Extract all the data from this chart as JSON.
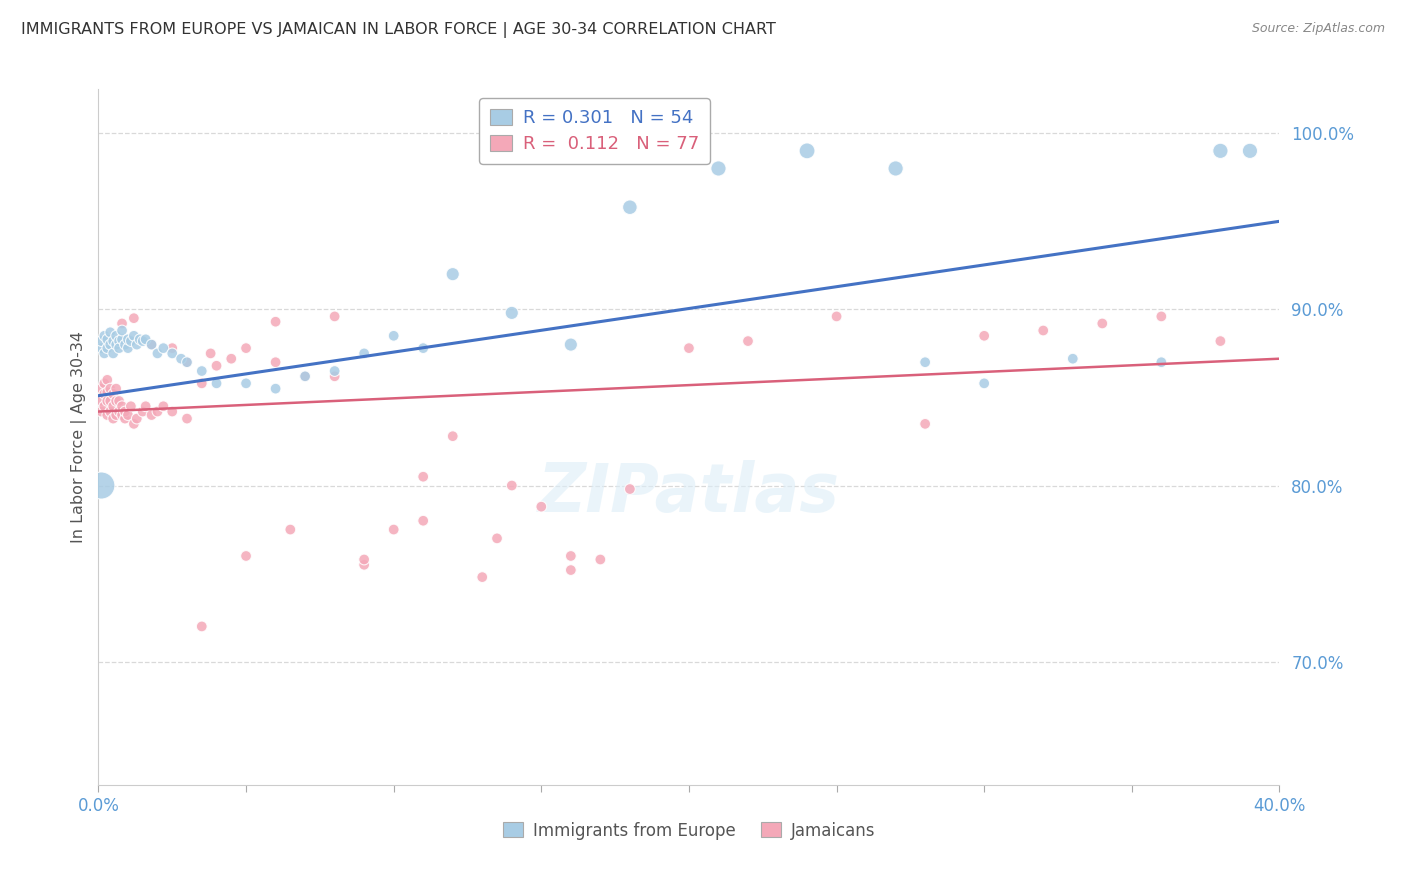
{
  "title": "IMMIGRANTS FROM EUROPE VS JAMAICAN IN LABOR FORCE | AGE 30-34 CORRELATION CHART",
  "source": "Source: ZipAtlas.com",
  "ylabel_left": "In Labor Force | Age 30-34",
  "x_min": 0.0,
  "x_max": 0.4,
  "y_min": 0.63,
  "y_max": 1.025,
  "ytick_vals": [
    0.7,
    0.8,
    0.9,
    1.0
  ],
  "ytick_labels": [
    "70.0%",
    "80.0%",
    "90.0%",
    "100.0%"
  ],
  "xtick_vals": [
    0.0,
    0.05,
    0.1,
    0.15,
    0.2,
    0.25,
    0.3,
    0.35,
    0.4
  ],
  "blue_color": "#a8cce4",
  "blue_line_color": "#4472c4",
  "pink_color": "#f4a8b8",
  "pink_line_color": "#d9607a",
  "axis_tick_color": "#5b9bd5",
  "label_blue": "Immigrants from Europe",
  "label_pink": "Jamaicans",
  "legend_text_blue": [
    "R = 0.301",
    "N = 54"
  ],
  "legend_text_pink": [
    "R =  0.112",
    "N = 77"
  ],
  "watermark": "ZIPatlas",
  "background_color": "#ffffff",
  "grid_color": "#d9d9d9",
  "blue_x": [
    0.001,
    0.001,
    0.002,
    0.002,
    0.003,
    0.003,
    0.004,
    0.004,
    0.005,
    0.005,
    0.006,
    0.006,
    0.007,
    0.007,
    0.008,
    0.008,
    0.009,
    0.01,
    0.01,
    0.011,
    0.012,
    0.013,
    0.014,
    0.015,
    0.016,
    0.018,
    0.02,
    0.022,
    0.025,
    0.028,
    0.03,
    0.035,
    0.04,
    0.05,
    0.06,
    0.07,
    0.08,
    0.09,
    0.1,
    0.11,
    0.12,
    0.14,
    0.16,
    0.18,
    0.21,
    0.24,
    0.27,
    0.3,
    0.33,
    0.36,
    0.001,
    0.28,
    0.38,
    0.39
  ],
  "blue_y": [
    0.878,
    0.882,
    0.875,
    0.885,
    0.878,
    0.883,
    0.88,
    0.887,
    0.875,
    0.882,
    0.88,
    0.885,
    0.882,
    0.878,
    0.883,
    0.888,
    0.88,
    0.878,
    0.883,
    0.882,
    0.885,
    0.88,
    0.883,
    0.882,
    0.883,
    0.88,
    0.875,
    0.878,
    0.875,
    0.872,
    0.87,
    0.865,
    0.858,
    0.858,
    0.855,
    0.862,
    0.865,
    0.875,
    0.885,
    0.878,
    0.92,
    0.898,
    0.88,
    0.958,
    0.98,
    0.99,
    0.98,
    0.858,
    0.872,
    0.87,
    0.8,
    0.87,
    0.99,
    0.99
  ],
  "blue_sizes": [
    60,
    60,
    60,
    60,
    60,
    60,
    60,
    60,
    60,
    60,
    60,
    60,
    60,
    60,
    60,
    60,
    60,
    60,
    60,
    60,
    60,
    60,
    60,
    60,
    60,
    60,
    60,
    60,
    60,
    60,
    60,
    60,
    60,
    60,
    60,
    60,
    60,
    60,
    60,
    60,
    90,
    90,
    90,
    110,
    120,
    130,
    120,
    60,
    60,
    60,
    380,
    60,
    120,
    120
  ],
  "pink_x": [
    0.001,
    0.001,
    0.001,
    0.002,
    0.002,
    0.002,
    0.003,
    0.003,
    0.003,
    0.003,
    0.004,
    0.004,
    0.004,
    0.005,
    0.005,
    0.005,
    0.006,
    0.006,
    0.006,
    0.007,
    0.007,
    0.008,
    0.008,
    0.009,
    0.009,
    0.01,
    0.011,
    0.012,
    0.013,
    0.015,
    0.016,
    0.018,
    0.02,
    0.022,
    0.025,
    0.03,
    0.035,
    0.04,
    0.045,
    0.05,
    0.06,
    0.07,
    0.08,
    0.09,
    0.1,
    0.11,
    0.12,
    0.14,
    0.16,
    0.18,
    0.2,
    0.22,
    0.25,
    0.28,
    0.13,
    0.15,
    0.17,
    0.3,
    0.32,
    0.34,
    0.36,
    0.38,
    0.008,
    0.012,
    0.018,
    0.025,
    0.03,
    0.038,
    0.06,
    0.08,
    0.035,
    0.05,
    0.065,
    0.09,
    0.11,
    0.135,
    0.16
  ],
  "pink_y": [
    0.848,
    0.855,
    0.842,
    0.852,
    0.845,
    0.858,
    0.853,
    0.86,
    0.848,
    0.84,
    0.848,
    0.855,
    0.842,
    0.845,
    0.852,
    0.838,
    0.848,
    0.84,
    0.855,
    0.842,
    0.848,
    0.84,
    0.845,
    0.838,
    0.842,
    0.84,
    0.845,
    0.835,
    0.838,
    0.842,
    0.845,
    0.84,
    0.842,
    0.845,
    0.842,
    0.838,
    0.858,
    0.868,
    0.872,
    0.878,
    0.87,
    0.862,
    0.862,
    0.755,
    0.775,
    0.805,
    0.828,
    0.8,
    0.752,
    0.798,
    0.878,
    0.882,
    0.896,
    0.835,
    0.748,
    0.788,
    0.758,
    0.885,
    0.888,
    0.892,
    0.896,
    0.882,
    0.892,
    0.895,
    0.88,
    0.878,
    0.87,
    0.875,
    0.893,
    0.896,
    0.72,
    0.76,
    0.775,
    0.758,
    0.78,
    0.77,
    0.76
  ],
  "pink_sizes": [
    60,
    60,
    60,
    60,
    60,
    60,
    60,
    60,
    60,
    60,
    60,
    60,
    60,
    60,
    60,
    60,
    60,
    60,
    60,
    60,
    60,
    60,
    60,
    60,
    60,
    60,
    60,
    60,
    60,
    60,
    60,
    60,
    60,
    60,
    60,
    60,
    60,
    60,
    60,
    60,
    60,
    60,
    60,
    60,
    60,
    60,
    60,
    60,
    60,
    60,
    60,
    60,
    60,
    60,
    60,
    60,
    60,
    60,
    60,
    60,
    60,
    60,
    60,
    60,
    60,
    60,
    60,
    60,
    60,
    60,
    60,
    60,
    60,
    60,
    60,
    60,
    60
  ],
  "blue_trend": [
    0.851,
    0.95
  ],
  "pink_trend": [
    0.842,
    0.872
  ]
}
